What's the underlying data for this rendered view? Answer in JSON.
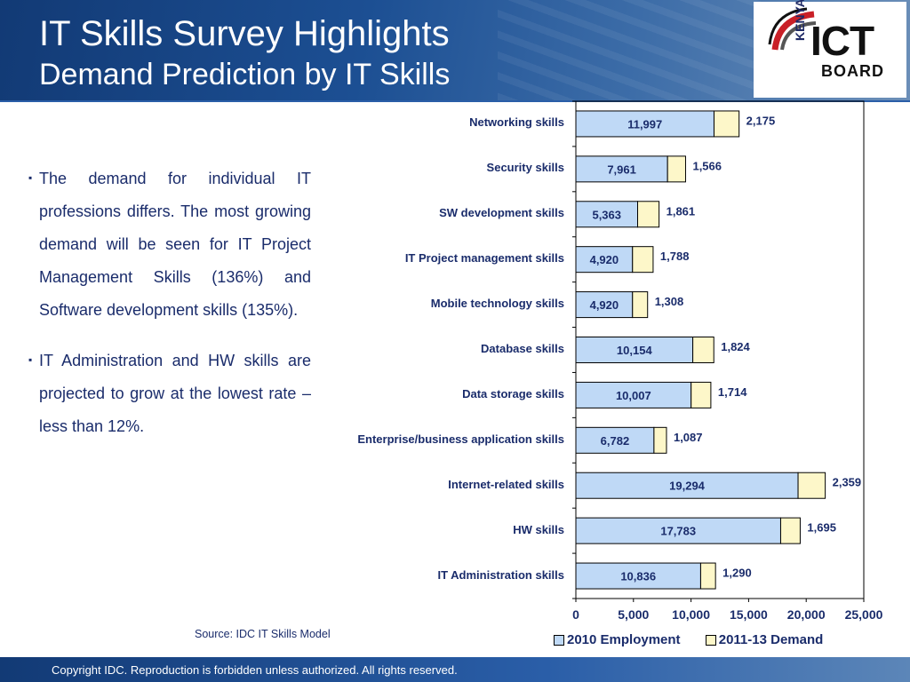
{
  "header": {
    "title": "IT Skills Survey Highlights",
    "subtitle": "Demand Prediction by IT Skills"
  },
  "logo": {
    "kenya": "KENYA",
    "ict": "ICT",
    "board": "BOARD"
  },
  "bullets": [
    "The demand for individual IT professions differs. The most growing demand will be seen for IT Project Management Skills (136%) and Software development skills (135%).",
    "IT Administration and HW skills are projected to grow at the lowest rate – less than 12%."
  ],
  "source": "Source: IDC IT Skills Model",
  "footer": "Copyright IDC. Reproduction is forbidden unless authorized. All rights reserved.",
  "colors": {
    "employment": "#bfd9f6",
    "demand": "#fdf7c9",
    "text": "#1a2c6b"
  },
  "chart_data": {
    "type": "bar",
    "orientation": "horizontal",
    "stacked": true,
    "categories": [
      "Networking skills",
      "Security skills",
      "SW development skills",
      "IT Project management skills",
      "Mobile technology skills",
      "Database skills",
      "Data storage skills",
      "Enterprise/business application skills",
      "Internet-related skills",
      "HW skills",
      "IT Administration skills"
    ],
    "series": [
      {
        "name": "2010 Employment",
        "values": [
          11997,
          7961,
          5363,
          4920,
          4920,
          10154,
          10007,
          6782,
          19294,
          17783,
          10836
        ]
      },
      {
        "name": "2011-13 Demand",
        "values": [
          2175,
          1566,
          1861,
          1788,
          1308,
          1824,
          1714,
          1087,
          2359,
          1695,
          1290
        ]
      }
    ],
    "data_labels": {
      "employment": [
        "11,997",
        "7,961",
        "5,363",
        "4,920",
        "4,920",
        "10,154",
        "10,007",
        "6,782",
        "19,294",
        "17,783",
        "10,836"
      ],
      "demand": [
        "2,175",
        "1,566",
        "1,861",
        "1,788",
        "1,308",
        "1,824",
        "1,714",
        "1,087",
        "2,359",
        "1,695",
        "1,290"
      ]
    },
    "xlim": [
      0,
      25000
    ],
    "xticks": [
      0,
      5000,
      10000,
      15000,
      20000,
      25000
    ],
    "xtick_labels": [
      "0",
      "5,000",
      "10,000",
      "15,000",
      "20,000",
      "25,000"
    ],
    "grid": false,
    "legend_position": "bottom"
  }
}
